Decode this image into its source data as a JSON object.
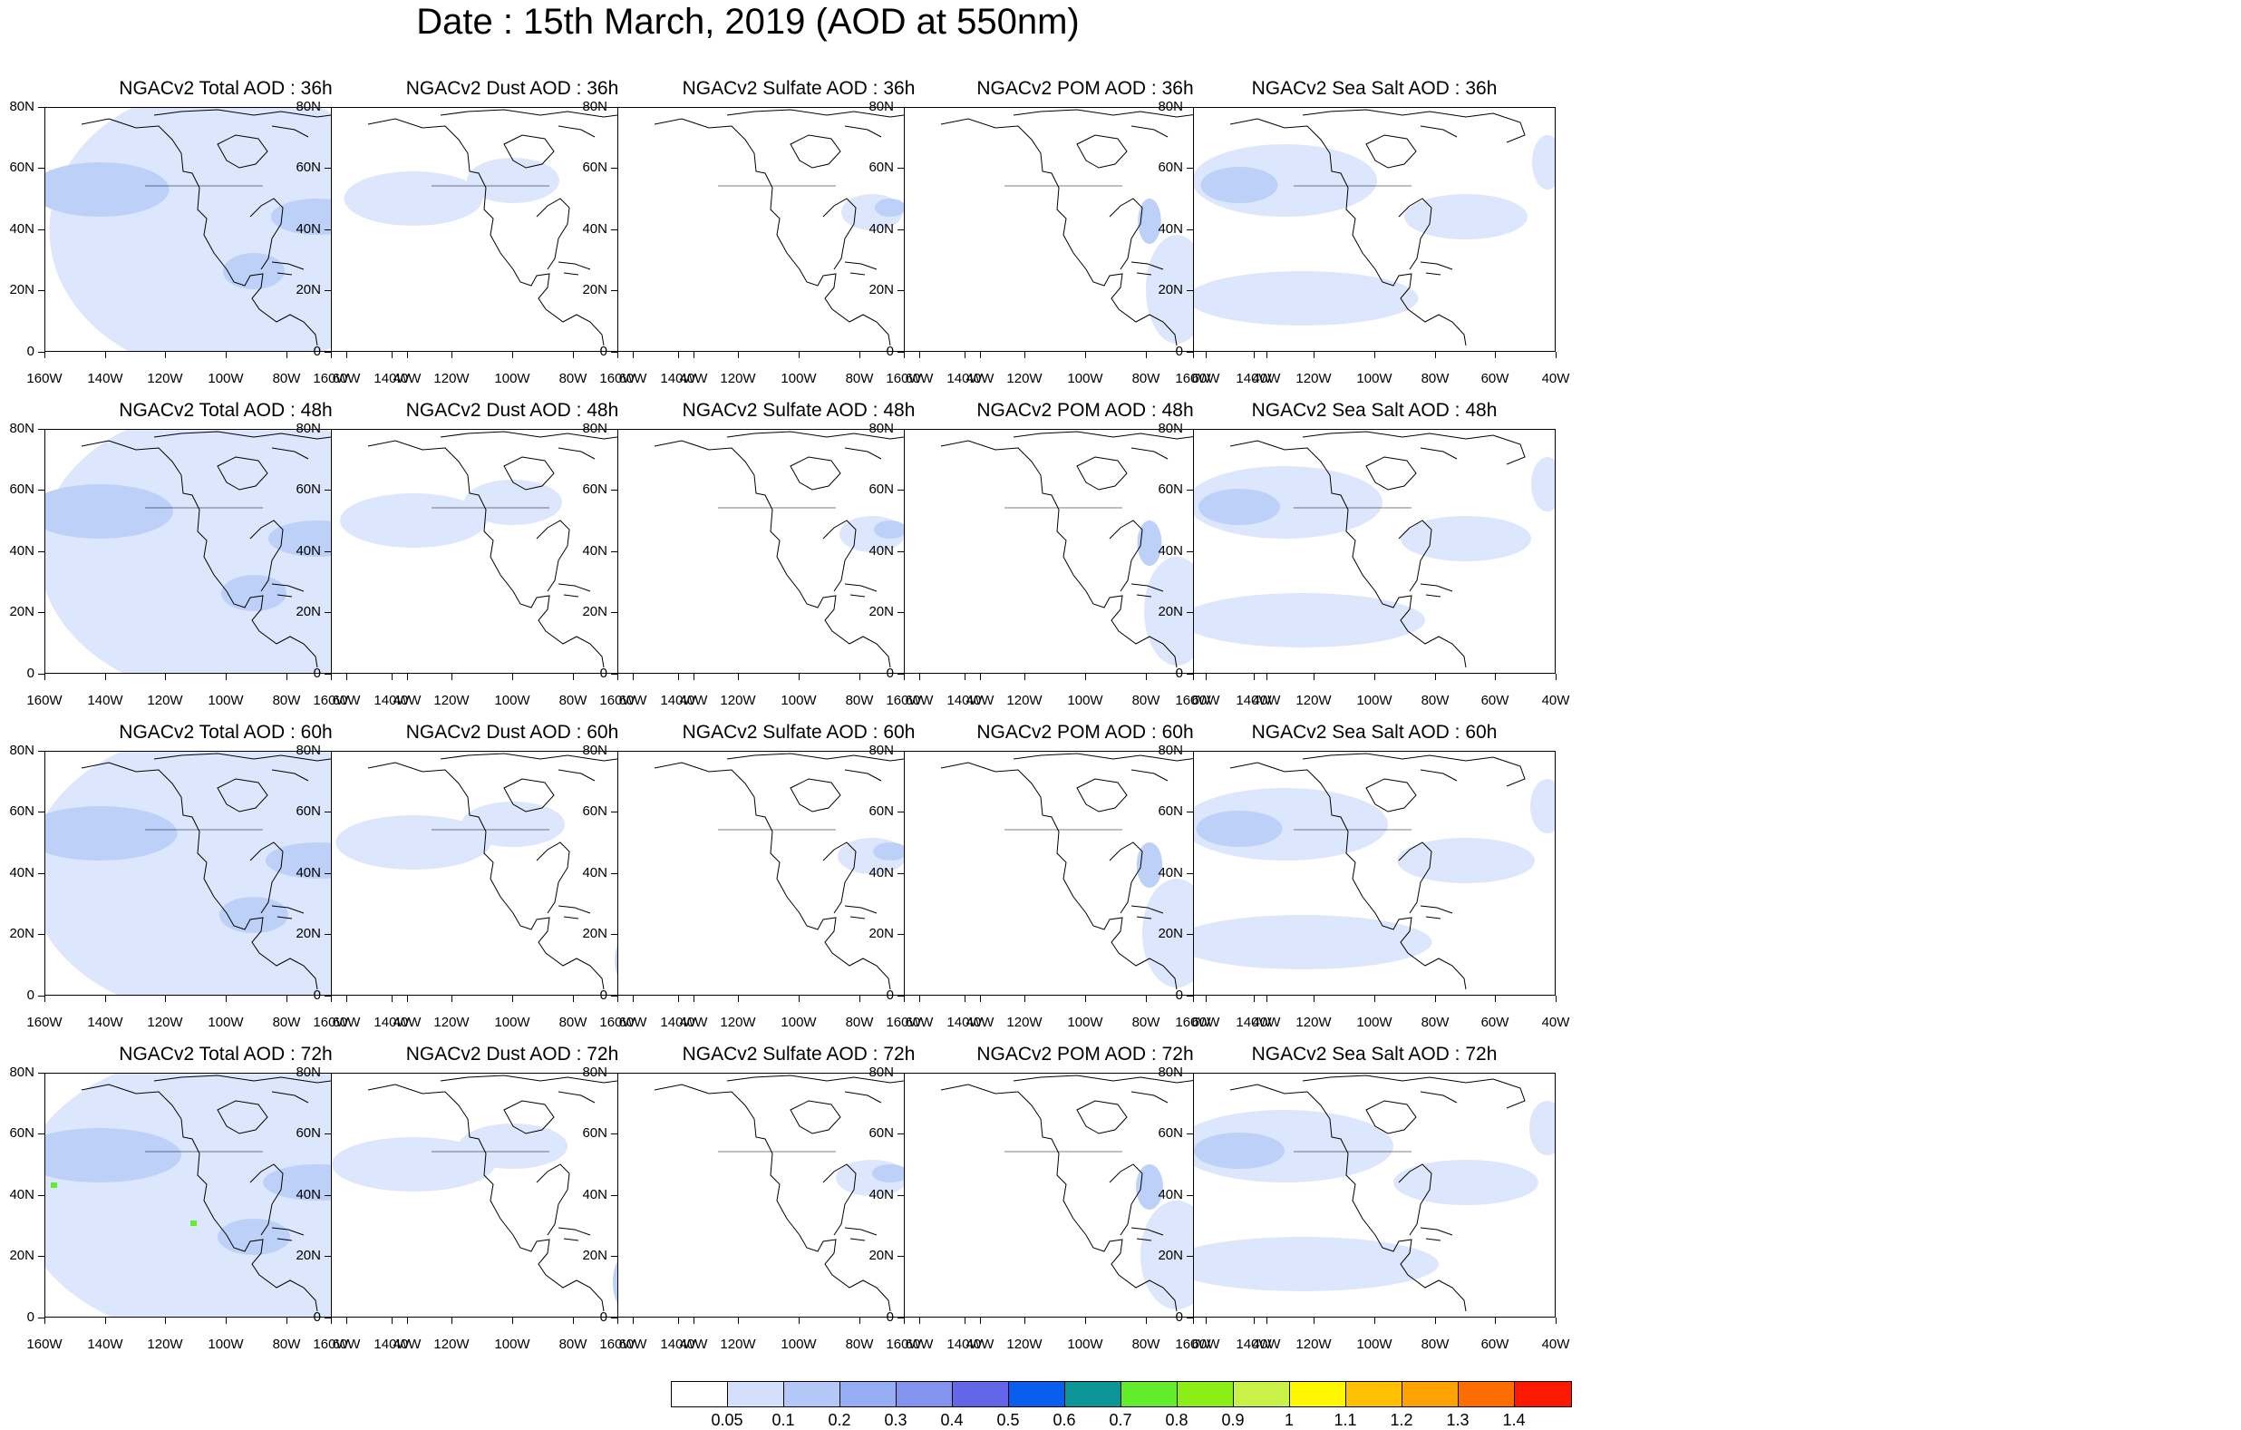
{
  "title": "Date : 15th March, 2019 (AOD at 550nm)",
  "panels": [
    [
      "NGACv2 Total AOD : 36h",
      "NGACv2 Dust AOD : 36h",
      "NGACv2 Sulfate AOD : 36h",
      "NGACv2 POM AOD : 36h",
      "NGACv2 Sea Salt AOD : 36h"
    ],
    [
      "NGACv2 Total AOD : 48h",
      "NGACv2 Dust AOD : 48h",
      "NGACv2 Sulfate AOD : 48h",
      "NGACv2 POM AOD : 48h",
      "NGACv2 Sea Salt AOD : 48h"
    ],
    [
      "NGACv2 Total AOD : 60h",
      "NGACv2 Dust AOD : 60h",
      "NGACv2 Sulfate AOD : 60h",
      "NGACv2 POM AOD : 60h",
      "NGACv2 Sea Salt AOD : 60h"
    ],
    [
      "NGACv2 Total AOD : 72h",
      "NGACv2 Dust AOD : 72h",
      "NGACv2 Sulfate AOD : 72h",
      "NGACv2 POM AOD : 72h",
      "NGACv2 Sea Salt  AOD : 72h"
    ]
  ],
  "y_ticks": [
    "80N",
    "60N",
    "40N",
    "20N",
    "0"
  ],
  "x_ticks": [
    "160W",
    "140W",
    "120W",
    "100W",
    "80W",
    "60W",
    "40W"
  ],
  "colorbar": {
    "labels": [
      "0.05",
      "0.1",
      "0.2",
      "0.3",
      "0.4",
      "0.5",
      "0.6",
      "0.7",
      "0.8",
      "0.9",
      "1",
      "1.1",
      "1.2",
      "1.3",
      "1.4"
    ],
    "colors": [
      "#ffffff",
      "#d4e0fb",
      "#b3c8f7",
      "#94adf3",
      "#8493ee",
      "#6466ea",
      "#0a5eef",
      "#0c9596",
      "#63ec2b",
      "#8bee14",
      "#c8f248",
      "#fff700",
      "#fec000",
      "#fda200",
      "#fd6d00",
      "#fb1a00"
    ]
  },
  "map_colors": {
    "level1": "#dce6fc",
    "level2": "#bcd0f8",
    "level3": "#9fb6f4",
    "level4": "#8493ee",
    "green": "#63ec2b",
    "coast": "#000000"
  }
}
